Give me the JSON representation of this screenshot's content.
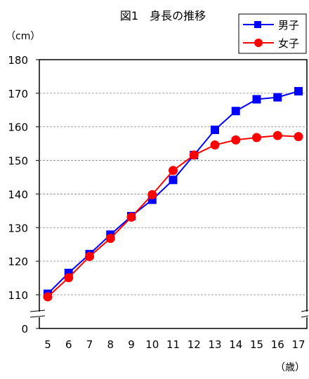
{
  "chart_data": {
    "type": "line",
    "title": "図1　身長の推移",
    "ylabel": "（cm）",
    "xlabel": "（歳）",
    "categories": [
      "5",
      "6",
      "7",
      "8",
      "9",
      "10",
      "11",
      "12",
      "13",
      "14",
      "15",
      "16",
      "17"
    ],
    "ylim": [
      100,
      180
    ],
    "y_axis_break": true,
    "y_ticks": [
      0,
      110,
      120,
      130,
      140,
      150,
      160,
      170,
      180
    ],
    "grid": true,
    "legend_position": "top-right",
    "series": [
      {
        "name": "男子",
        "color": "#0000ff",
        "marker": "square",
        "values": [
          110.3,
          116.5,
          122.1,
          127.9,
          133.4,
          138.3,
          144.2,
          151.6,
          159.1,
          164.7,
          168.2,
          168.8,
          170.6
        ]
      },
      {
        "name": "女子",
        "color": "#ff0000",
        "marker": "circle",
        "values": [
          109.4,
          115.1,
          121.4,
          126.8,
          133.1,
          139.8,
          147.0,
          151.6,
          154.6,
          156.1,
          156.8,
          157.4,
          157.1
        ]
      }
    ]
  }
}
